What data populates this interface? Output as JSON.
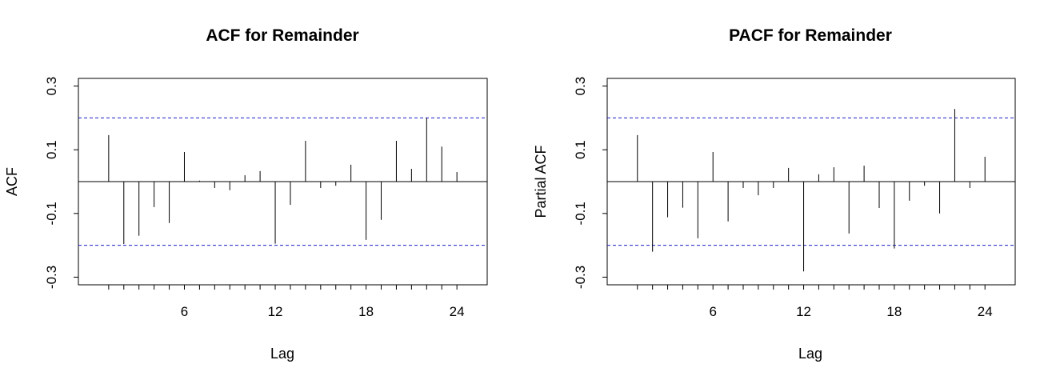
{
  "chart_data": [
    {
      "type": "bar",
      "title": "ACF for Remainder",
      "xlabel": "Lag",
      "ylabel": "ACF",
      "xlim": [
        0,
        25
      ],
      "ylim": [
        -0.3,
        0.3
      ],
      "x_ticks": [
        6,
        12,
        18,
        24
      ],
      "y_ticks": [
        -0.3,
        -0.1,
        0.1,
        0.3
      ],
      "confidence_band": [
        -0.2,
        0.2
      ],
      "x": [
        1,
        2,
        3,
        4,
        5,
        6,
        7,
        8,
        9,
        10,
        11,
        12,
        13,
        14,
        15,
        16,
        17,
        18,
        19,
        20,
        21,
        22,
        23,
        24
      ],
      "values": [
        0.146,
        -0.196,
        -0.17,
        -0.08,
        -0.13,
        0.093,
        0.003,
        -0.02,
        -0.027,
        0.02,
        0.033,
        -0.195,
        -0.073,
        0.128,
        -0.02,
        -0.013,
        0.053,
        -0.183,
        -0.12,
        0.128,
        0.04,
        0.2,
        0.11,
        0.03
      ],
      "colors": {
        "bars": "#000000",
        "band": "#1f1fcc",
        "axes": "#000000"
      }
    },
    {
      "type": "bar",
      "title": "PACF for Remainder",
      "xlabel": "Lag",
      "ylabel": "Partial ACF",
      "xlim": [
        0,
        25
      ],
      "ylim": [
        -0.3,
        0.3
      ],
      "x_ticks": [
        6,
        12,
        18,
        24
      ],
      "y_ticks": [
        -0.3,
        -0.1,
        0.1,
        0.3
      ],
      "confidence_band": [
        -0.2,
        0.2
      ],
      "x": [
        1,
        2,
        3,
        4,
        5,
        6,
        7,
        8,
        9,
        10,
        11,
        12,
        13,
        14,
        15,
        16,
        17,
        18,
        19,
        20,
        21,
        22,
        23,
        24
      ],
      "values": [
        0.146,
        -0.22,
        -0.112,
        -0.082,
        -0.178,
        0.093,
        -0.125,
        -0.02,
        -0.043,
        -0.02,
        0.043,
        -0.282,
        0.023,
        0.045,
        -0.163,
        0.05,
        -0.083,
        -0.21,
        -0.06,
        -0.013,
        -0.1,
        0.228,
        -0.02,
        0.078
      ],
      "colors": {
        "bars": "#000000",
        "band": "#1f1fcc",
        "axes": "#000000"
      }
    }
  ]
}
